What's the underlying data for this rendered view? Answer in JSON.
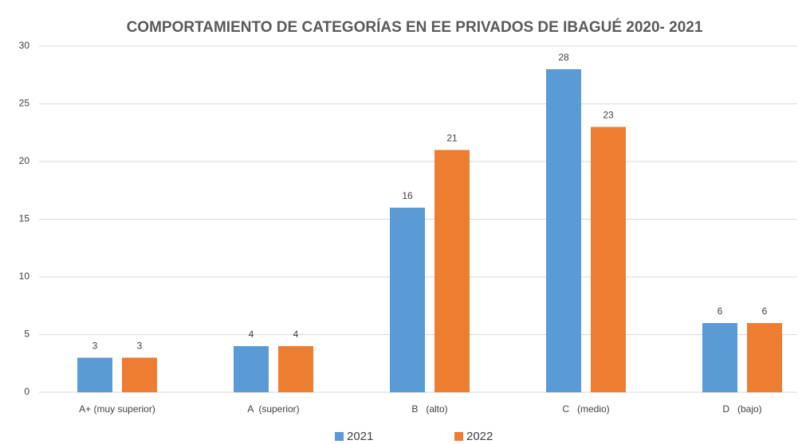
{
  "chart_data": {
    "type": "bar",
    "title": "COMPORTAMIENTO DE CATEGORÍAS EN EE PRIVADOS DE IBAGUÉ 2020- 2021",
    "categories": [
      "A+ (muy superior)",
      "A  (superior)",
      "B   (alto)",
      "C   (medio)",
      "D   (bajo)"
    ],
    "series": [
      {
        "name": "2021",
        "color": "#5b9bd5",
        "values": [
          3,
          4,
          16,
          28,
          6
        ]
      },
      {
        "name": "2022",
        "color": "#ed7d31",
        "values": [
          3,
          4,
          21,
          23,
          6
        ]
      }
    ],
    "ylim": [
      0,
      30
    ],
    "yticks": [
      0,
      5,
      10,
      15,
      20,
      25,
      30
    ],
    "grid": true,
    "legend": "bottom"
  }
}
